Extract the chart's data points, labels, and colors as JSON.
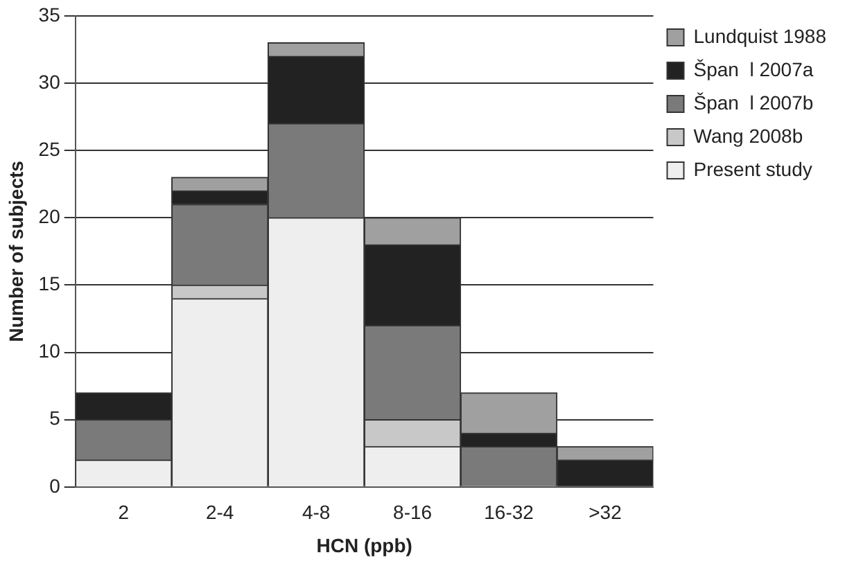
{
  "chart_data": {
    "type": "bar",
    "stacked": true,
    "xlabel": "HCN (ppb)",
    "ylabel": "Number of subjects",
    "categories": [
      "2",
      "2-4",
      "4-8",
      "8-16",
      "16-32",
      ">32"
    ],
    "series": [
      {
        "name": "Present study",
        "color": "#eeeeee",
        "values": [
          2,
          14,
          20,
          3,
          0,
          0
        ]
      },
      {
        "name": "Wang 2008b",
        "color": "#c8c8c8",
        "values": [
          0,
          1,
          0,
          2,
          0,
          0
        ]
      },
      {
        "name": "Špan  l 2007b",
        "color": "#7a7a7a",
        "values": [
          3,
          6,
          7,
          7,
          3,
          0
        ]
      },
      {
        "name": "Špan  l 2007a",
        "color": "#222222",
        "values": [
          2,
          1,
          5,
          6,
          1,
          2
        ]
      },
      {
        "name": "Lundquist 1988",
        "color": "#a0a0a0",
        "values": [
          0,
          1,
          1,
          2,
          3,
          1
        ]
      }
    ],
    "ylim": [
      0,
      35
    ],
    "yticks": [
      0,
      5,
      10,
      15,
      20,
      25,
      30,
      35
    ],
    "grid": "y",
    "legend": "right"
  }
}
